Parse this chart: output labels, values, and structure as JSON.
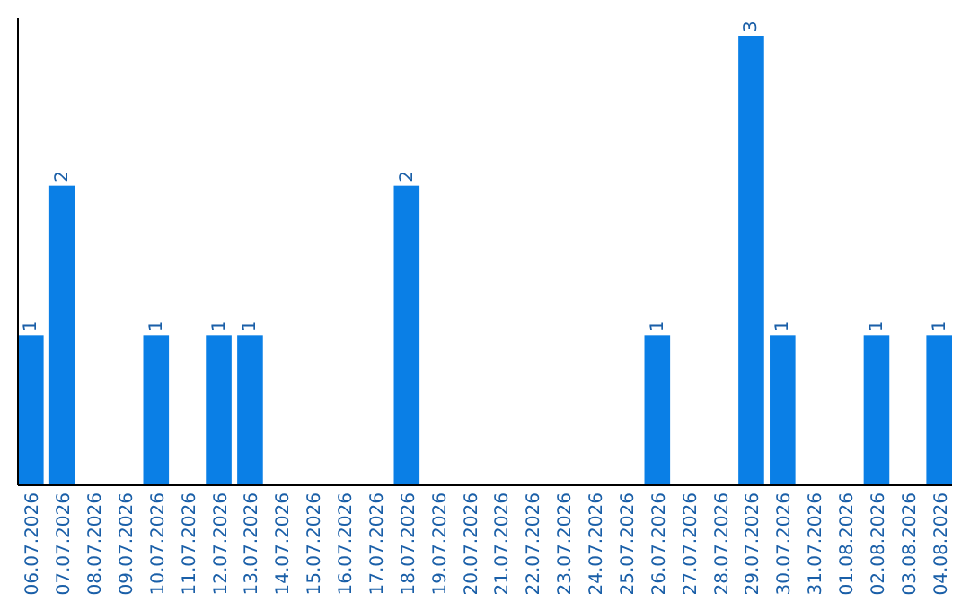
{
  "chart_data": {
    "type": "bar",
    "categories": [
      "06.07.2026",
      "07.07.2026",
      "08.07.2026",
      "09.07.2026",
      "10.07.2026",
      "11.07.2026",
      "12.07.2026",
      "13.07.2026",
      "14.07.2026",
      "15.07.2026",
      "16.07.2026",
      "17.07.2026",
      "18.07.2026",
      "19.07.2026",
      "20.07.2026",
      "21.07.2026",
      "22.07.2026",
      "23.07.2026",
      "24.07.2026",
      "25.07.2026",
      "26.07.2026",
      "27.07.2026",
      "28.07.2026",
      "29.07.2026",
      "30.07.2026",
      "31.07.2026",
      "01.08.2026",
      "02.08.2026",
      "03.08.2026",
      "04.08.2026"
    ],
    "values": [
      1,
      2,
      0,
      0,
      1,
      0,
      1,
      1,
      0,
      0,
      0,
      0,
      2,
      0,
      0,
      0,
      0,
      0,
      0,
      0,
      1,
      0,
      0,
      3,
      1,
      0,
      0,
      1,
      0,
      1
    ],
    "value_labels": [
      "1",
      "2",
      null,
      null,
      "1",
      null,
      "1",
      "1",
      null,
      null,
      null,
      null,
      "2",
      null,
      null,
      null,
      null,
      null,
      null,
      null,
      "1",
      null,
      null,
      "3",
      "1",
      null,
      null,
      "1",
      null,
      "1"
    ],
    "color": "#0a7fe6"
  }
}
